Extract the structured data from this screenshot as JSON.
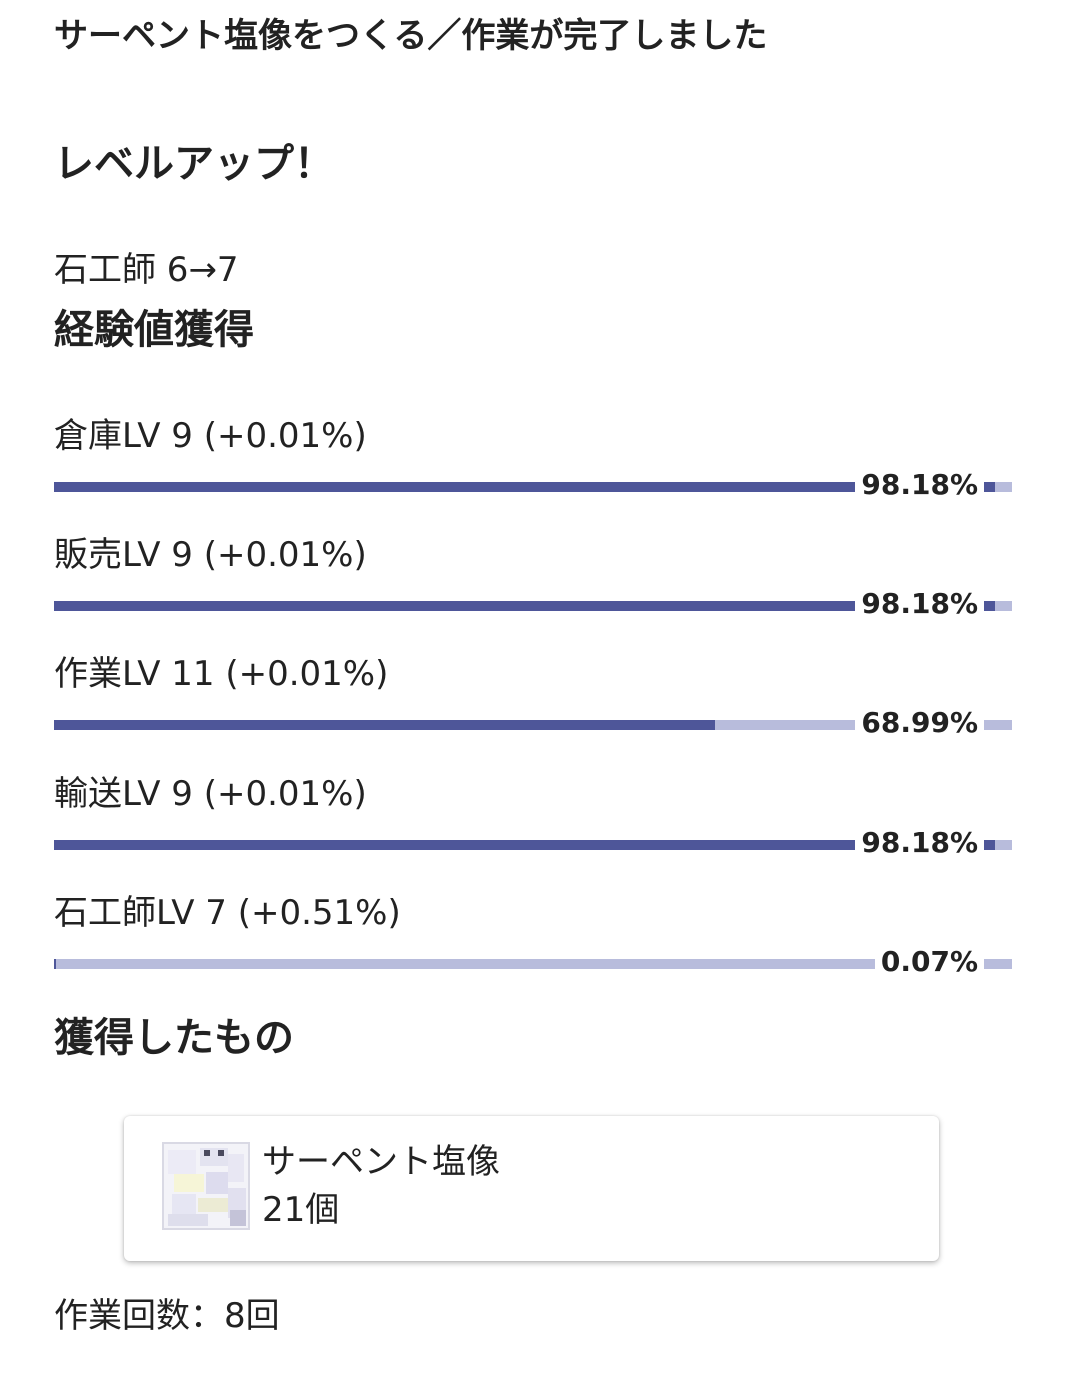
{
  "title": "サーペント塩像をつくる／作業が完了しました",
  "level_up": {
    "heading": "レベルアップ！",
    "text": "石工師 6→7"
  },
  "experience": {
    "heading": "経験値獲得",
    "bar_colors": {
      "fill": "#4e5699",
      "track": "#b8bcdc"
    },
    "rows": [
      {
        "label": "倉庫LV 9 (+0.01%)",
        "percent_text": "98.18%",
        "progress": 98.18
      },
      {
        "label": "販売LV 9 (+0.01%)",
        "percent_text": "98.18%",
        "progress": 98.18
      },
      {
        "label": "作業LV 11 (+0.01%)",
        "percent_text": "68.99%",
        "progress": 68.99
      },
      {
        "label": "輸送LV 9 (+0.01%)",
        "percent_text": "98.18%",
        "progress": 98.18
      },
      {
        "label": "石工師LV 7 (+0.51%)",
        "percent_text": "0.07%",
        "progress": 0.07
      }
    ]
  },
  "obtained": {
    "heading": "獲得したもの",
    "items": [
      {
        "name": "サーペント塩像",
        "count": "21個",
        "icon": "serpent-salt-statue-icon"
      }
    ]
  },
  "work_count_text": "作業回数：8回"
}
